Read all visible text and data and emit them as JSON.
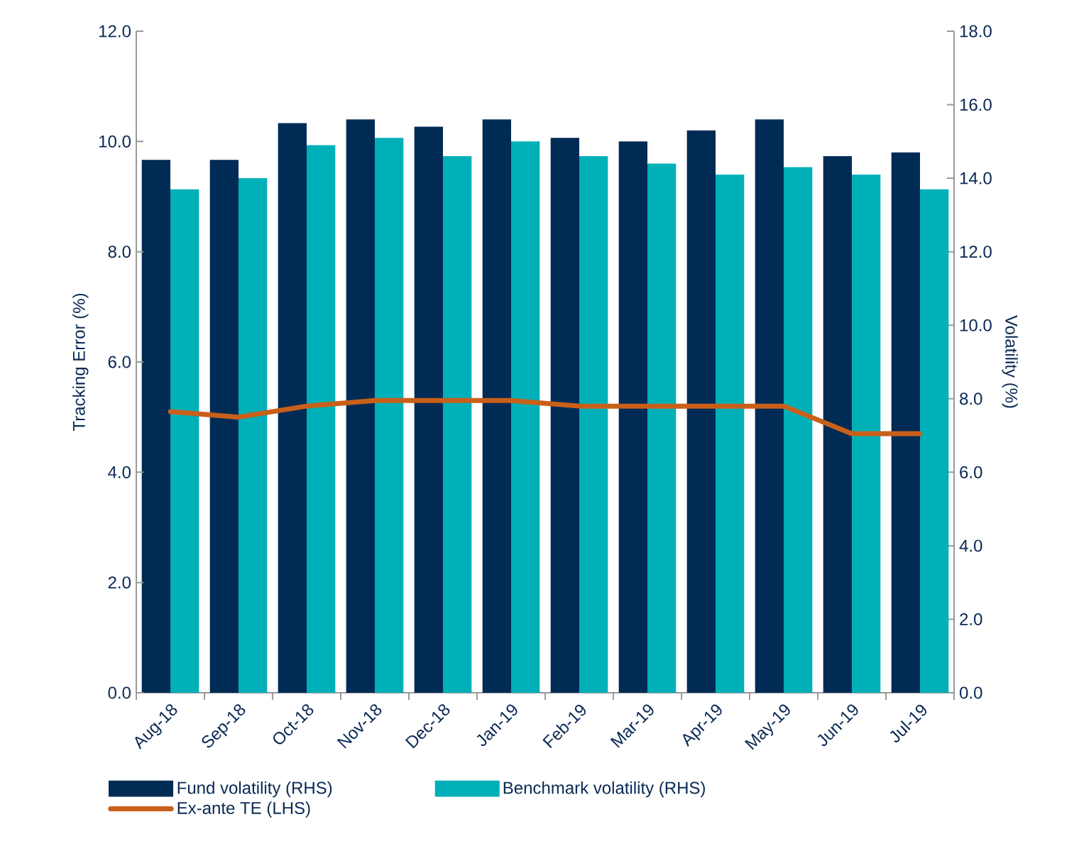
{
  "chart_data": {
    "type": "bar",
    "ylabel": "Tracking Error (%)",
    "y2label": "Volatility (%)",
    "categories": [
      "Aug-18",
      "Sep-18",
      "Oct-18",
      "Nov-18",
      "Dec-18",
      "Jan-19",
      "Feb-19",
      "Mar-19",
      "Apr-19",
      "May-19",
      "Jun-19",
      "Jul-19"
    ],
    "series": [
      {
        "name": "Fund volatility (RHS)",
        "axis": "y2",
        "color": "#002b55",
        "values": [
          14.5,
          14.5,
          15.5,
          15.6,
          15.4,
          15.6,
          15.1,
          15.0,
          15.3,
          15.6,
          14.6,
          14.7
        ]
      },
      {
        "name": "Benchmark volatility (RHS)",
        "axis": "y2",
        "color": "#00b0b9",
        "values": [
          13.7,
          14.0,
          14.9,
          15.1,
          14.6,
          15.0,
          14.6,
          14.4,
          14.1,
          14.3,
          14.1,
          13.7
        ]
      },
      {
        "name": "Ex-ante TE (LHS)",
        "type": "line",
        "axis": "y",
        "color": "#c8601a",
        "values": [
          5.1,
          5.0,
          5.2,
          5.3,
          5.3,
          5.3,
          5.2,
          5.2,
          5.2,
          5.2,
          4.7,
          4.7
        ]
      }
    ],
    "ylim": [
      0,
      12
    ],
    "yticks": [
      {
        "value": 0,
        "label": "0.0"
      },
      {
        "value": 2,
        "label": "2.0"
      },
      {
        "value": 4,
        "label": "4.0"
      },
      {
        "value": 6,
        "label": "6.0"
      },
      {
        "value": 8,
        "label": "8.0"
      },
      {
        "value": 10,
        "label": "10.0"
      },
      {
        "value": 12,
        "label": "12.0"
      }
    ],
    "y2lim": [
      0,
      18
    ],
    "y2ticks": [
      {
        "value": 0,
        "label": "0.0"
      },
      {
        "value": 2,
        "label": "2.0"
      },
      {
        "value": 4,
        "label": "4.0"
      },
      {
        "value": 6,
        "label": "6.0"
      },
      {
        "value": 8,
        "label": "8.0"
      },
      {
        "value": 10,
        "label": "10.0"
      },
      {
        "value": 12,
        "label": "12.0"
      },
      {
        "value": 14,
        "label": "14.0"
      },
      {
        "value": 16,
        "label": "16.0"
      },
      {
        "value": 18,
        "label": "18.0"
      }
    ],
    "grid": false,
    "legend": "bottom",
    "line_style": "solid",
    "marker": "none"
  }
}
